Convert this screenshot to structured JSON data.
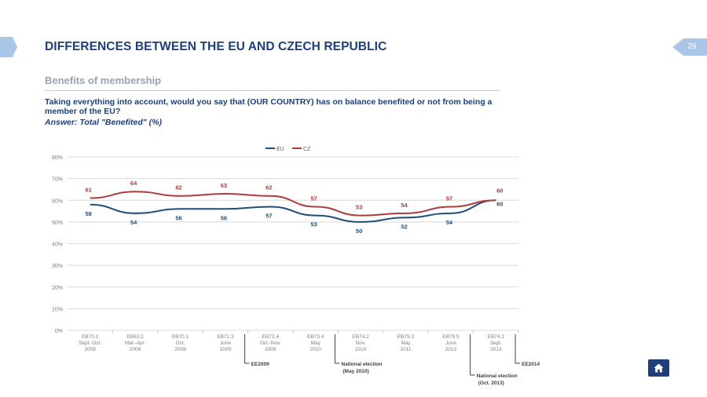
{
  "page": {
    "title": "DIFFERENCES BETWEEN THE EU AND CZECH REPUBLIC",
    "page_number": "29",
    "subtitle": "Benefits of membership",
    "question": "Taking everything into account, would you say that (OUR COUNTRY) has on balance benefited or not from being a member of the EU?",
    "answer": "Answer: Total \"Benefited\" (%)",
    "home_icon": "home-icon"
  },
  "chart_data": {
    "type": "line",
    "title": "",
    "xlabel": "",
    "ylabel": "",
    "ylim": [
      0,
      80
    ],
    "y_ticks": [
      "0%",
      "10%",
      "20%",
      "30%",
      "40%",
      "50%",
      "60%",
      "70%",
      "80%"
    ],
    "grid": true,
    "legend_position": "top",
    "categories": [
      [
        "EB70.1",
        "Sept.-Oct.",
        "2008"
      ],
      [
        "EB63.2",
        "Mar.-Apr.",
        "2008"
      ],
      [
        "EB70.1",
        "Oct.",
        "2008"
      ],
      [
        "EB71.3",
        "June",
        "2009"
      ],
      [
        "EB72.4",
        "Oct.-Nov.",
        "2009"
      ],
      [
        "EB73.4",
        "May",
        "2010"
      ],
      [
        "EB74.2",
        "Nov.",
        "2010"
      ],
      [
        "EB75.3",
        "May",
        "2011"
      ],
      [
        "EB79.5",
        "June",
        "2013"
      ],
      [
        "EB74.1",
        "Sept.",
        "2013"
      ]
    ],
    "series": [
      {
        "name": "EU",
        "color": "#1f4e79",
        "values": [
          58,
          54,
          56,
          56,
          57,
          53,
          50,
          52,
          54,
          60
        ]
      },
      {
        "name": "CZ",
        "color": "#b03a3a",
        "values": [
          61,
          64,
          62,
          63,
          62,
          57,
          53,
          54,
          57,
          60
        ]
      }
    ],
    "annotations": [
      {
        "after_index": 3,
        "text": "EE2009"
      },
      {
        "after_index": 5,
        "text": "National election",
        "text2": "(May 2010)"
      },
      {
        "after_index": 8,
        "text": "National election",
        "text2": "(Oct. 2013)"
      },
      {
        "after_index": 9,
        "text": "EE2014"
      }
    ]
  }
}
